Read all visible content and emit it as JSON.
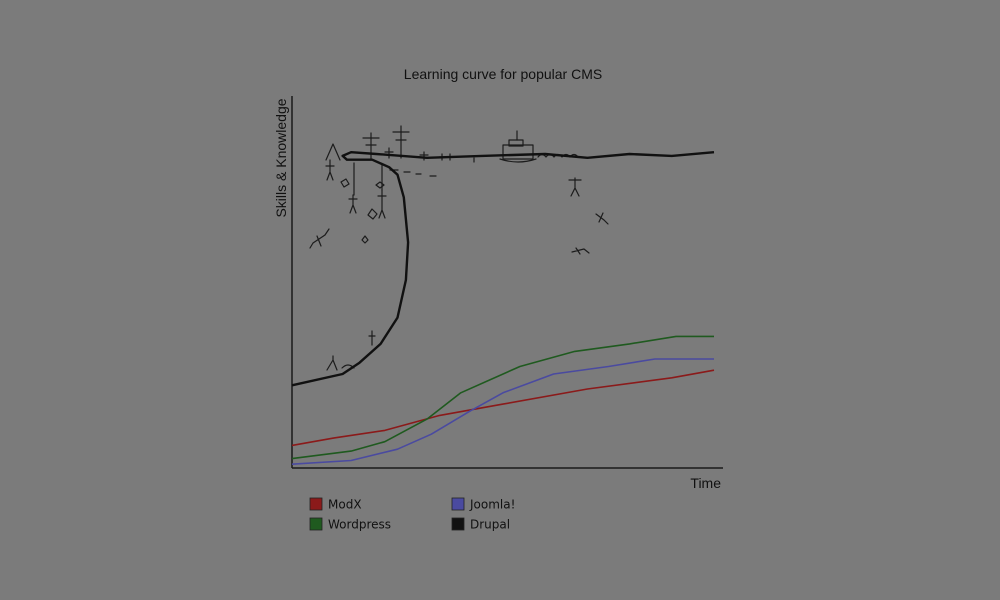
{
  "chart_data": {
    "type": "line",
    "title": "Learning curve for popular CMS",
    "xlabel": "Time",
    "ylabel": "Skills & Knowledge",
    "xlim": [
      0,
      100
    ],
    "ylim": [
      0,
      100
    ],
    "grid": false,
    "legend_position": "bottom-left",
    "series": [
      {
        "name": "ModX",
        "color": "#8b1a1a",
        "x": [
          0,
          10,
          22,
          35,
          50,
          70,
          90,
          100
        ],
        "y": [
          6,
          8,
          10,
          14,
          17,
          21,
          24,
          26
        ]
      },
      {
        "name": "Wordpress",
        "color": "#1f5a1f",
        "x": [
          0,
          14,
          22,
          32,
          40,
          54,
          67,
          80,
          91,
          100
        ],
        "y": [
          2.5,
          4.5,
          7,
          13,
          20,
          27,
          31,
          33,
          35,
          35
        ]
      },
      {
        "name": "Joomla!",
        "color": "#4a4aa0",
        "x": [
          0,
          14,
          25,
          33,
          42,
          50,
          62,
          75,
          86,
          100
        ],
        "y": [
          1,
          2,
          5,
          9,
          15,
          20,
          25,
          27,
          29,
          29
        ]
      },
      {
        "name": "Drupal",
        "color": "#111111",
        "x": [
          0,
          12,
          16,
          21,
          25,
          27,
          27.5,
          26.5,
          25,
          23,
          19,
          13,
          12,
          14,
          20,
          32,
          45,
          60,
          70,
          80,
          90,
          100
        ],
        "y": [
          22,
          25,
          28,
          33,
          40,
          50,
          60,
          72,
          78,
          80,
          82,
          82,
          83,
          84,
          83.5,
          82.5,
          83,
          83.5,
          82.5,
          83.5,
          83,
          84
        ]
      }
    ]
  }
}
